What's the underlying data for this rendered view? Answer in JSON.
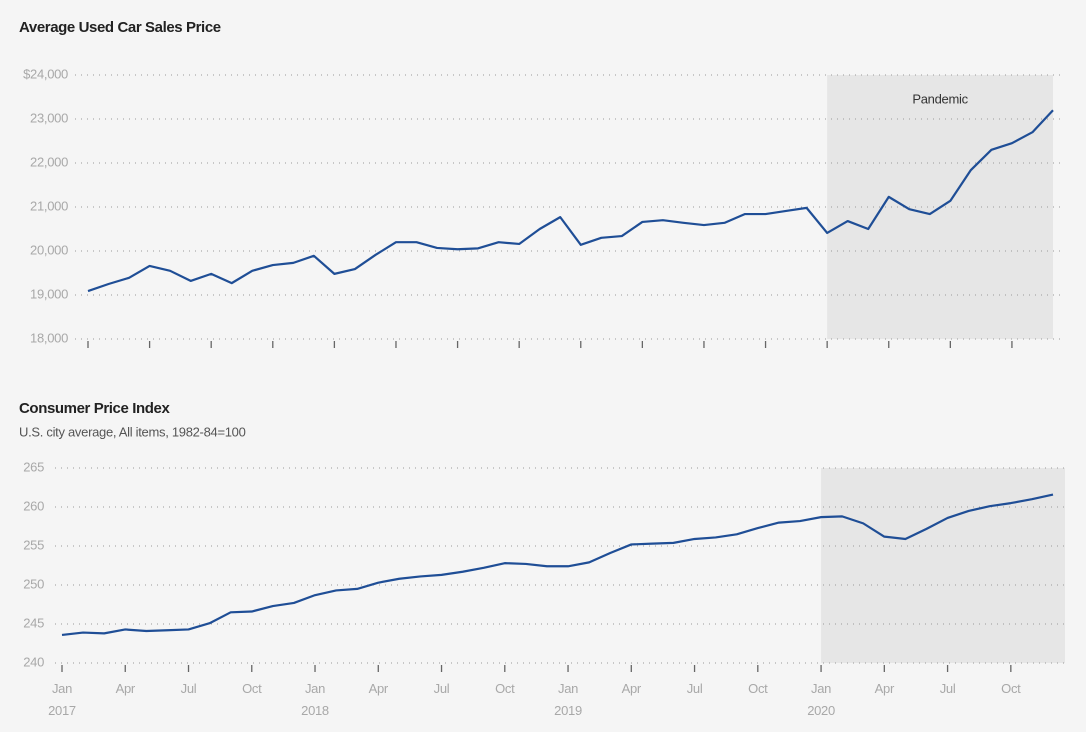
{
  "chart_data": [
    {
      "type": "line",
      "title": "Average Used Car Sales Price",
      "annotation": "Pandemic",
      "shade_from": 36,
      "series": [
        {
          "name": "Average Used Car Sales Price",
          "color": "#1f4e96",
          "values": [
            19090,
            19250,
            19390,
            19660,
            19550,
            19320,
            19480,
            19270,
            19550,
            19680,
            19730,
            19890,
            19480,
            19590,
            19910,
            20200,
            20200,
            20070,
            20040,
            20060,
            20200,
            20160,
            20500,
            20770,
            20140,
            20300,
            20340,
            20660,
            20700,
            20640,
            20590,
            20640,
            20840,
            20840,
            20910,
            20980,
            20410,
            20680,
            20500,
            21230,
            20950,
            20840,
            21140,
            21840,
            22300,
            22450,
            22700,
            23200
          ]
        }
      ],
      "ylim": [
        18000,
        24000
      ],
      "yticks": [
        {
          "value": 18000,
          "label": "18,000"
        },
        {
          "value": 19000,
          "label": "19,000"
        },
        {
          "value": 20000,
          "label": "20,000"
        },
        {
          "value": 21000,
          "label": "21,000"
        },
        {
          "value": 22000,
          "label": "22,000"
        },
        {
          "value": 23000,
          "label": "23,000"
        },
        {
          "value": 24000,
          "label": "$24,000"
        }
      ],
      "grid": true
    },
    {
      "type": "line",
      "title": "Consumer Price Index",
      "subtitle": "U.S. city average, All items, 1982-84=100",
      "shade_from": 36,
      "categories": [
        "Jan 2017",
        null,
        null,
        "Apr",
        null,
        null,
        "Jul",
        null,
        null,
        "Oct",
        null,
        null,
        "Jan 2018",
        null,
        null,
        "Apr",
        null,
        null,
        "Jul",
        null,
        null,
        "Oct",
        null,
        null,
        "Jan 2019",
        null,
        null,
        "Apr",
        null,
        null,
        "Jul",
        null,
        null,
        "Oct",
        null,
        null,
        "Jan 2020",
        null,
        null,
        "Apr",
        null,
        null,
        "Jul",
        null,
        null,
        "Oct",
        null,
        null
      ],
      "series": [
        {
          "name": "Consumer Price Index",
          "color": "#1f4e96",
          "values": [
            243.6,
            243.9,
            243.8,
            244.3,
            244.1,
            244.2,
            244.3,
            245.1,
            246.5,
            246.6,
            247.3,
            247.7,
            248.7,
            249.3,
            249.5,
            250.3,
            250.8,
            251.1,
            251.3,
            251.7,
            252.2,
            252.8,
            252.7,
            252.4,
            252.4,
            252.9,
            254.1,
            255.2,
            255.3,
            255.4,
            255.9,
            256.1,
            256.5,
            257.3,
            258.0,
            258.2,
            258.7,
            258.8,
            257.9,
            256.2,
            255.9,
            257.2,
            258.6,
            259.5,
            260.1,
            260.5,
            261.0,
            261.6
          ]
        }
      ],
      "ylim": [
        240,
        265
      ],
      "yticks": [
        240,
        245,
        250,
        255,
        260,
        265
      ],
      "grid": true
    }
  ]
}
